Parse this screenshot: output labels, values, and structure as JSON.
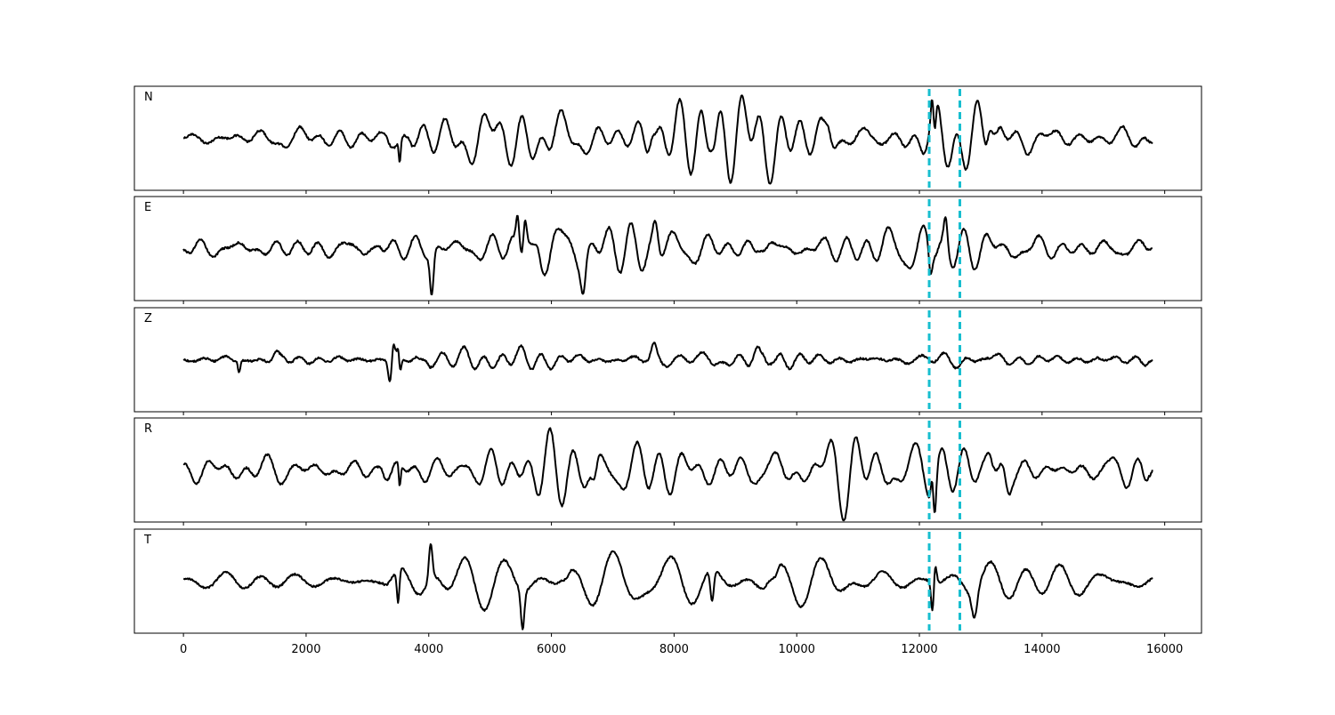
{
  "chart_data": {
    "type": "line",
    "title": "",
    "xlabel": "",
    "ylabel": "",
    "xlim": [
      -800,
      16600
    ],
    "ylim": [
      -1.15,
      1.15
    ],
    "x_ticks": [
      0,
      2000,
      4000,
      6000,
      8000,
      10000,
      12000,
      14000,
      16000
    ],
    "x_tick_labels": [
      "0",
      "2000",
      "4000",
      "6000",
      "8000",
      "10000",
      "12000",
      "14000",
      "16000"
    ],
    "grid": false,
    "legend": "none",
    "line_color": "#000000",
    "marker_color": "#17becf",
    "markers_x": [
      12160,
      12660
    ],
    "sample_x_range": [
      0,
      15800
    ],
    "panels": [
      {
        "name": "N",
        "label": "N",
        "shape": {
          "noise": 0.11,
          "osc": [
            [
              0.13,
              600,
              9000,
              2
            ],
            [
              0.2,
              3200,
              3600,
              3
            ],
            [
              0.38,
              3600,
              13200,
              4
            ],
            [
              0.22,
              13200,
              15800,
              5
            ]
          ]
        },
        "spikes": [
          [
            3515,
            -0.98,
            30
          ],
          [
            3505,
            0.65,
            25
          ],
          [
            12250,
            -0.75,
            35
          ],
          [
            12210,
            0.42,
            30
          ],
          [
            7640,
            0.4,
            60
          ],
          [
            8600,
            0.38,
            60
          ],
          [
            10520,
            0.3,
            60
          ],
          [
            13130,
            0.4,
            70
          ]
        ]
      },
      {
        "name": "E",
        "label": "E",
        "shape": {
          "noise": 0.1,
          "osc": [
            [
              0.12,
              0,
              3100,
              6
            ],
            [
              0.38,
              3100,
              5700,
              7
            ],
            [
              0.45,
              3900,
              5500,
              8
            ],
            [
              0.35,
              5700,
              9400,
              9
            ],
            [
              0.3,
              9400,
              15800,
              10
            ]
          ]
        },
        "spikes": [
          [
            4050,
            -0.9,
            40
          ],
          [
            5570,
            0.8,
            40
          ],
          [
            5450,
            0.72,
            40
          ],
          [
            6520,
            -0.6,
            50
          ],
          [
            12180,
            -0.55,
            40
          ],
          [
            12430,
            0.6,
            40
          ],
          [
            7700,
            0.55,
            60
          ]
        ]
      },
      {
        "name": "Z",
        "label": "Z",
        "shape": {
          "noise": 0.05,
          "osc": [
            [
              0.16,
              3250,
              3900,
              11
            ],
            [
              0.14,
              3900,
              9600,
              12
            ],
            [
              0.1,
              9600,
              15800,
              13
            ]
          ]
        },
        "spikes": [
          [
            900,
            -0.42,
            30
          ],
          [
            890,
            0.2,
            30
          ],
          [
            3515,
            0.7,
            30
          ],
          [
            3525,
            -0.82,
            30
          ],
          [
            3370,
            -0.55,
            40
          ],
          [
            3420,
            0.35,
            40
          ],
          [
            7670,
            0.3,
            60
          ],
          [
            9440,
            -0.3,
            60
          ],
          [
            9460,
            0.25,
            60
          ],
          [
            1500,
            0.12,
            60
          ]
        ]
      },
      {
        "name": "R",
        "label": "R",
        "shape": {
          "noise": 0.12,
          "osc": [
            [
              0.12,
              0,
              1900,
              14
            ],
            [
              0.12,
              1900,
              3150,
              15
            ],
            [
              0.38,
              3150,
              13200,
              16
            ],
            [
              0.25,
              13200,
              15800,
              17
            ]
          ]
        },
        "spikes": [
          [
            3515,
            -0.95,
            30
          ],
          [
            3505,
            0.62,
            25
          ],
          [
            12250,
            -0.78,
            35
          ],
          [
            12210,
            0.45,
            30
          ],
          [
            13130,
            0.42,
            70
          ],
          [
            13450,
            -0.5,
            70
          ],
          [
            6700,
            -0.48,
            60
          ]
        ]
      },
      {
        "name": "T",
        "label": "T",
        "shape": {
          "noise": 0.12,
          "osc": [
            [
              0.12,
              0,
              3200,
              18
            ],
            [
              0.38,
              3200,
              6200,
              19
            ],
            [
              0.35,
              6200,
              9600,
              20
            ],
            [
              0.28,
              9600,
              15800,
              21
            ]
          ]
        },
        "spikes": [
          [
            3500,
            -0.75,
            30
          ],
          [
            4030,
            0.8,
            40
          ],
          [
            5530,
            -0.85,
            40
          ],
          [
            8620,
            -0.72,
            40
          ],
          [
            12220,
            -0.85,
            35
          ],
          [
            12250,
            0.65,
            35
          ],
          [
            12900,
            -0.55,
            60
          ]
        ]
      }
    ]
  }
}
